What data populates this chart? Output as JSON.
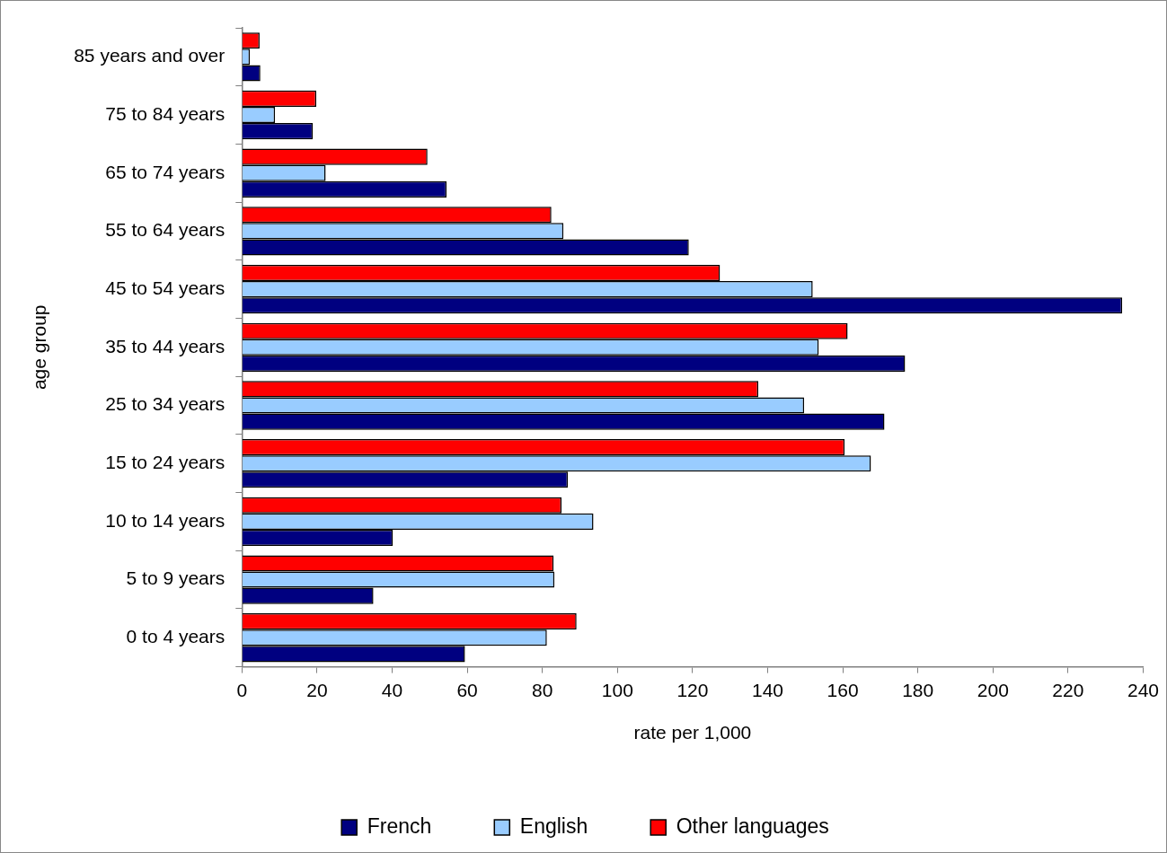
{
  "chart_data": {
    "type": "bar",
    "orientation": "horizontal",
    "xlabel": "rate per 1,000",
    "ylabel": "age group",
    "categories": [
      "85 years and over",
      "75 to 84 years",
      "65 to 74 years",
      "55 to 64 years",
      "45 to 54 years",
      "35 to 44 years",
      "25 to 34 years",
      "15 to 24 years",
      "10 to 14 years",
      "5 to 9 years",
      "0 to 4 years"
    ],
    "series": [
      {
        "name": "French",
        "color": "#000080",
        "values": [
          4.9,
          18.9,
          54.5,
          119,
          234.4,
          176.6,
          171.1,
          86.8,
          40.2,
          35,
          59.4
        ]
      },
      {
        "name": "English",
        "color": "#99ccff",
        "values": [
          2.1,
          8.8,
          22.3,
          85.6,
          152,
          153.6,
          149.7,
          167.5,
          93.6,
          83.2,
          81.2
        ]
      },
      {
        "name": "Other languages",
        "color": "#ff0000",
        "values": [
          4.7,
          19.8,
          49.4,
          82.4,
          127.3,
          161.3,
          137.5,
          160.5,
          85.1,
          83,
          89.1
        ]
      }
    ],
    "xlim": [
      0,
      240
    ],
    "xticks": [
      0,
      20,
      40,
      60,
      80,
      100,
      120,
      140,
      160,
      180,
      200,
      220,
      240
    ],
    "grid": false,
    "legend": "bottom"
  }
}
